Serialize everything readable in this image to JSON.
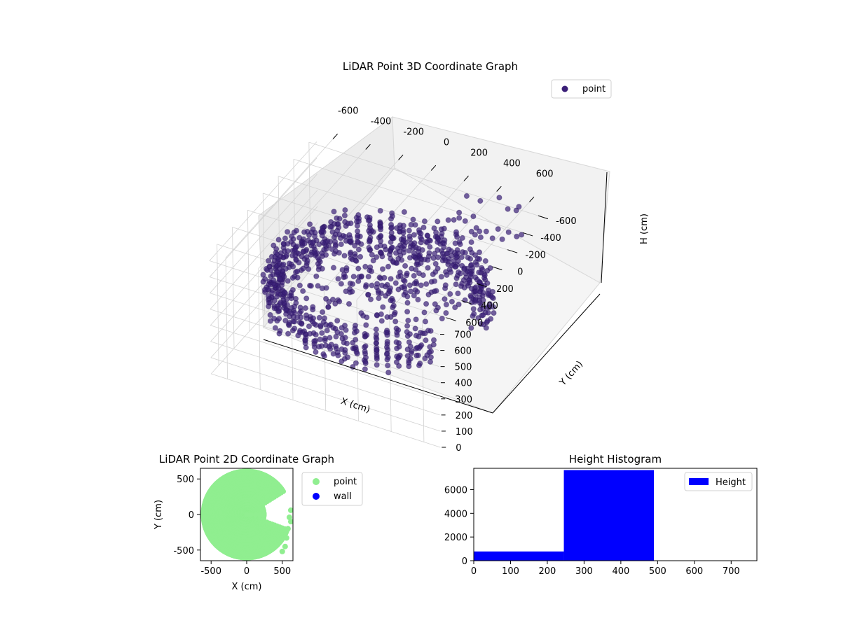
{
  "chart_data": [
    {
      "type": "scatter",
      "projection": "3d",
      "title": "LiDAR Point 3D Coordinate Graph",
      "xlabel": "X (cm)",
      "ylabel": "Y (cm)",
      "zlabel": "H (cm)",
      "xlim": [
        -700,
        700
      ],
      "ylim": [
        -700,
        700
      ],
      "zlim": [
        750,
        0
      ],
      "xticks": [
        -600,
        -400,
        -200,
        0,
        200,
        400,
        600
      ],
      "yticks": [
        -600,
        -400,
        -200,
        0,
        200,
        400,
        600
      ],
      "zticks": [
        0,
        100,
        200,
        300,
        400,
        500,
        600,
        700
      ],
      "legend": {
        "entries": [
          "point"
        ],
        "placement": "upper right"
      },
      "grid": true,
      "marker_color": "#3b1f78",
      "description_of_points": "dense ring-shaped LiDAR point cloud, radius ~550-650 cm, heights mostly 250-500 cm, open sector toward +X"
    },
    {
      "type": "scatter",
      "title": "LiDAR Point 2D Coordinate Graph",
      "xlabel": "X (cm)",
      "ylabel": "Y (cm)",
      "xlim": [
        -650,
        650
      ],
      "ylim": [
        -650,
        650
      ],
      "xticks": [
        -500,
        0,
        500
      ],
      "yticks": [
        -500,
        0,
        500
      ],
      "series": [
        {
          "name": "point",
          "color": "#90ee90"
        },
        {
          "name": "wall",
          "color": "#0000ff"
        }
      ],
      "legend": {
        "placement": "outside right"
      }
    },
    {
      "type": "bar",
      "title": "Height Histogram",
      "xlabel": "",
      "ylabel": "",
      "bins": [
        [
          0,
          245
        ],
        [
          245,
          490
        ]
      ],
      "values": [
        780,
        7650
      ],
      "xlim": [
        0,
        770
      ],
      "ylim": [
        0,
        7800
      ],
      "xticks": [
        0,
        100,
        200,
        300,
        400,
        500,
        600,
        700
      ],
      "yticks": [
        0,
        2000,
        4000,
        6000
      ],
      "series": [
        {
          "name": "Height",
          "color": "#0000ff"
        }
      ],
      "legend": {
        "placement": "upper right"
      }
    }
  ]
}
